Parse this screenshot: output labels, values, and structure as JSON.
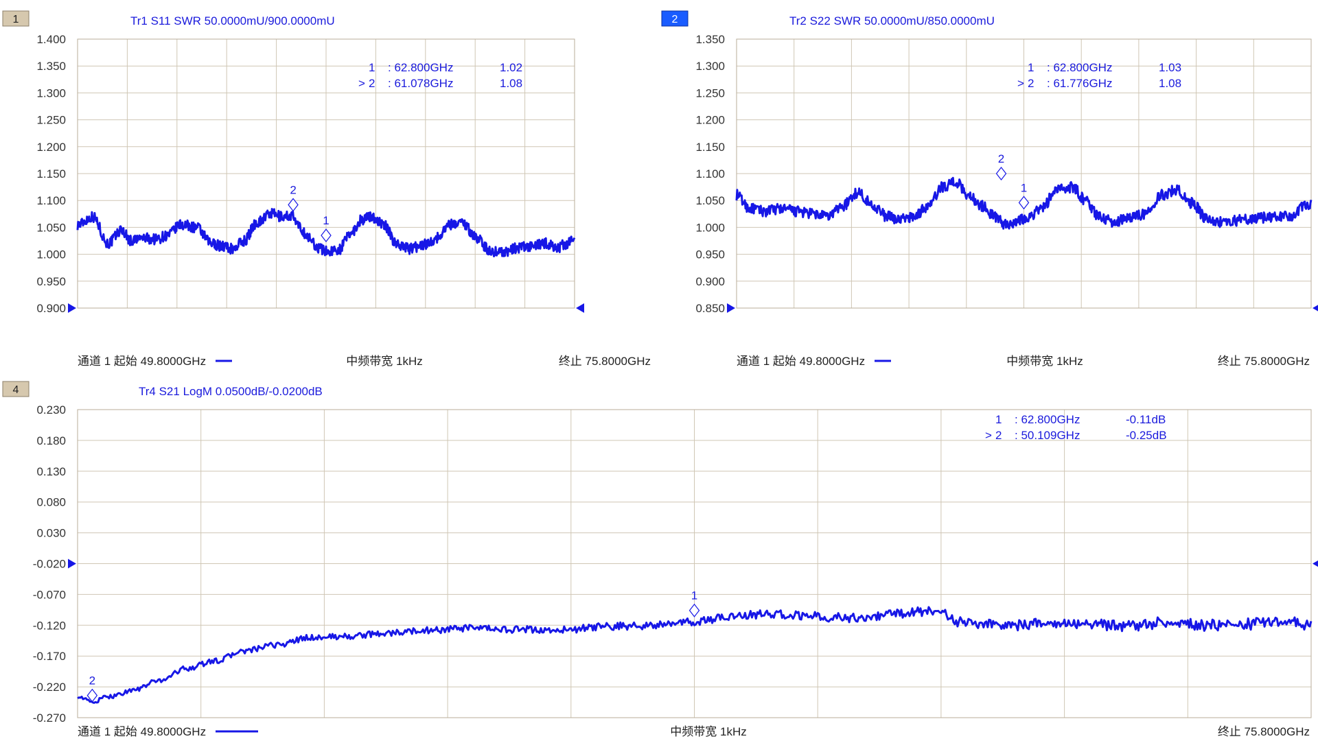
{
  "chart_data": [
    {
      "type": "line",
      "badge": "1",
      "badge_style": "inactive",
      "title": "Tr1 S11 SWR 50.0000mU/900.0000mU",
      "y_ticks": [
        "1.400",
        "1.350",
        "1.300",
        "1.250",
        "1.200",
        "1.150",
        "1.100",
        "1.050",
        "1.000",
        "0.950",
        "0.900"
      ],
      "ylim": [
        0.9,
        1.4
      ],
      "xlim_ghz": [
        49.8,
        75.8
      ],
      "ref_value": 0.9,
      "footer": {
        "left": "通道 1 起始 49.8000GHz",
        "center": "中频带宽 1kHz",
        "right": "终止 75.8000GHz"
      },
      "markers": [
        {
          "pointer": "",
          "id": "1",
          "freq": ": 62.800GHz",
          "value": "1.02",
          "x_ghz": 62.8,
          "y": 1.035
        },
        {
          "pointer": ">",
          "id": "2",
          "freq": ": 61.078GHz",
          "value": "1.08",
          "x_ghz": 61.078,
          "y": 1.092
        }
      ],
      "series": [
        {
          "x_ghz": [
            49.8,
            50.6,
            51.4,
            52.1,
            52.6,
            53.2,
            53.9,
            54.5,
            55.2,
            56.0,
            56.8,
            57.4,
            57.9,
            58.5,
            59.2,
            59.9,
            60.5,
            61.0,
            61.4,
            61.9,
            62.4,
            62.9,
            63.5,
            64.1,
            64.7,
            65.2,
            65.8,
            66.5,
            67.2,
            67.9,
            68.6,
            69.2,
            69.9,
            70.7,
            71.4,
            72.2,
            72.9,
            73.6,
            74.3,
            74.9,
            75.4,
            75.8
          ],
          "values": [
            1.055,
            1.07,
            1.02,
            1.045,
            1.025,
            1.03,
            1.028,
            1.035,
            1.055,
            1.05,
            1.02,
            1.015,
            1.01,
            1.025,
            1.06,
            1.075,
            1.07,
            1.072,
            1.05,
            1.03,
            1.012,
            1.005,
            1.01,
            1.04,
            1.065,
            1.07,
            1.055,
            1.02,
            1.01,
            1.018,
            1.03,
            1.055,
            1.06,
            1.03,
            1.005,
            1.005,
            1.012,
            1.015,
            1.02,
            1.012,
            1.02,
            1.025
          ]
        }
      ]
    },
    {
      "type": "line",
      "badge": "2",
      "badge_style": "active",
      "title": "Tr2 S22 SWR 50.0000mU/850.0000mU",
      "y_ticks": [
        "1.350",
        "1.300",
        "1.250",
        "1.200",
        "1.150",
        "1.100",
        "1.050",
        "1.000",
        "0.950",
        "0.900",
        "0.850"
      ],
      "ylim": [
        0.85,
        1.35
      ],
      "xlim_ghz": [
        49.8,
        75.8
      ],
      "ref_value": 0.85,
      "footer": {
        "left": "通道 1 起始 49.8000GHz",
        "center": "中频带宽 1kHz",
        "right": "终止 75.8000GHz"
      },
      "markers": [
        {
          "pointer": "",
          "id": "1",
          "freq": ": 62.800GHz",
          "value": "1.03",
          "x_ghz": 62.8,
          "y": 1.046
        },
        {
          "pointer": ">",
          "id": "2",
          "freq": ": 61.776GHz",
          "value": "1.08",
          "x_ghz": 61.776,
          "y": 1.1
        }
      ],
      "series": [
        {
          "x_ghz": [
            49.8,
            50.4,
            51.1,
            51.8,
            52.5,
            53.2,
            53.9,
            54.6,
            55.3,
            56.0,
            56.6,
            57.2,
            57.8,
            58.5,
            59.1,
            59.7,
            60.3,
            60.9,
            61.5,
            62.0,
            62.5,
            63.0,
            63.6,
            64.3,
            65.0,
            65.6,
            66.2,
            66.9,
            67.6,
            68.3,
            69.0,
            69.7,
            70.4,
            71.1,
            71.7,
            72.3,
            72.9,
            73.6,
            74.3,
            75.0,
            75.5,
            75.8
          ],
          "values": [
            1.06,
            1.035,
            1.03,
            1.035,
            1.03,
            1.025,
            1.02,
            1.04,
            1.065,
            1.04,
            1.02,
            1.015,
            1.02,
            1.04,
            1.075,
            1.085,
            1.06,
            1.04,
            1.02,
            1.005,
            1.012,
            1.02,
            1.035,
            1.07,
            1.075,
            1.05,
            1.02,
            1.01,
            1.02,
            1.025,
            1.06,
            1.07,
            1.045,
            1.015,
            1.01,
            1.012,
            1.015,
            1.018,
            1.02,
            1.022,
            1.04,
            1.045
          ]
        }
      ]
    },
    {
      "type": "line",
      "badge": "4",
      "badge_style": "inactive",
      "title": "Tr4 S21 LogM 0.0500dB/-0.0200dB",
      "y_ticks": [
        "0.230",
        "0.180",
        "0.130",
        "0.080",
        "0.030",
        "-0.020",
        "-0.070",
        "-0.120",
        "-0.170",
        "-0.220",
        "-0.270"
      ],
      "ylim": [
        -0.27,
        0.23
      ],
      "xlim_ghz": [
        49.8,
        75.8
      ],
      "ref_value": -0.02,
      "footer": {
        "left": "通道 1 起始 49.8000GHz",
        "center": "中频带宽 1kHz",
        "right": "终止 75.8000GHz"
      },
      "markers": [
        {
          "pointer": "",
          "id": "1",
          "freq": ": 62.800GHz",
          "value": "-0.11dB",
          "x_ghz": 62.8,
          "y": -0.096
        },
        {
          "pointer": ">",
          "id": "2",
          "freq": ": 50.109GHz",
          "value": "-0.25dB",
          "x_ghz": 50.109,
          "y": -0.234
        }
      ],
      "series": [
        {
          "x_ghz": [
            49.8,
            50.1,
            50.5,
            51.0,
            51.5,
            52.1,
            52.7,
            53.3,
            54.0,
            54.7,
            55.5,
            56.3,
            57.2,
            58.1,
            59.0,
            60.0,
            61.0,
            62.0,
            62.8,
            63.6,
            64.4,
            65.2,
            66.0,
            66.7,
            67.3,
            67.9,
            68.4,
            69.0,
            69.7,
            70.4,
            71.2,
            72.0,
            72.8,
            73.6,
            74.4,
            75.2,
            75.8
          ],
          "values": [
            -0.235,
            -0.245,
            -0.235,
            -0.225,
            -0.21,
            -0.19,
            -0.178,
            -0.162,
            -0.152,
            -0.14,
            -0.138,
            -0.133,
            -0.128,
            -0.125,
            -0.127,
            -0.128,
            -0.122,
            -0.12,
            -0.115,
            -0.105,
            -0.102,
            -0.105,
            -0.108,
            -0.105,
            -0.1,
            -0.095,
            -0.115,
            -0.118,
            -0.12,
            -0.115,
            -0.118,
            -0.122,
            -0.115,
            -0.12,
            -0.118,
            -0.112,
            -0.12
          ]
        }
      ]
    }
  ]
}
